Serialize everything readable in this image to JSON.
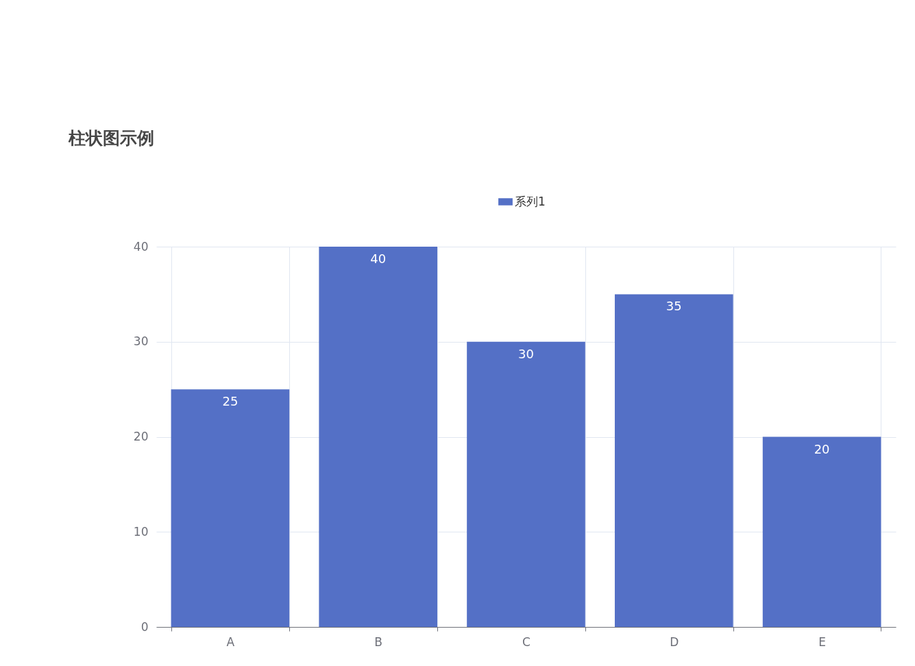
{
  "chart_data": {
    "type": "bar",
    "title": "柱状图示例",
    "categories": [
      "A",
      "B",
      "C",
      "D",
      "E"
    ],
    "series": [
      {
        "name": "系列1",
        "color": "#5470c6",
        "values": [
          25,
          40,
          30,
          35,
          20
        ]
      }
    ],
    "ylim": [
      0,
      40
    ],
    "yticks": [
      0,
      10,
      20,
      30,
      40
    ],
    "grid": true,
    "legend": "top",
    "data_labels": true
  }
}
